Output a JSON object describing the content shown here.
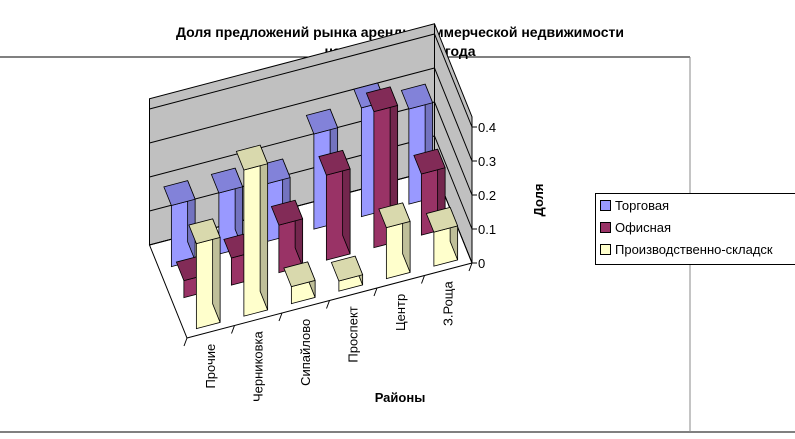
{
  "chart_data": {
    "type": "bar",
    "subtype": "3d-clustered-column",
    "title": "Доля предложений рынка аренды коммерческой недвижимости на 1 апреля 2012 года",
    "title_lines": [
      "Доля предложений рынка аренды коммерческой недвижимости",
      "на 1 апреля 2012 года"
    ],
    "xlabel": "Районы",
    "ylabel": "Доля",
    "ylim": [
      0,
      0.4
    ],
    "yticks": [
      "0",
      "0.1",
      "0.2",
      "0.3",
      "0.4"
    ],
    "grid": true,
    "legend": "right",
    "categories": [
      "Прочие",
      "Черниковка",
      "Сипайлово",
      "Проспект",
      "Центр",
      "З.Роща"
    ],
    "series": [
      {
        "name": "Торговая",
        "color": "#9999ff",
        "values": [
          0.18,
          0.18,
          0.17,
          0.28,
          0.32,
          0.28
        ]
      },
      {
        "name": "Офисная",
        "color": "#993366",
        "values": [
          0.05,
          0.08,
          0.14,
          0.25,
          0.4,
          0.18
        ]
      },
      {
        "name": "Производственно-складск",
        "color": "#ffffcc",
        "values": [
          0.25,
          0.43,
          0.05,
          0.03,
          0.15,
          0.1
        ]
      }
    ]
  }
}
